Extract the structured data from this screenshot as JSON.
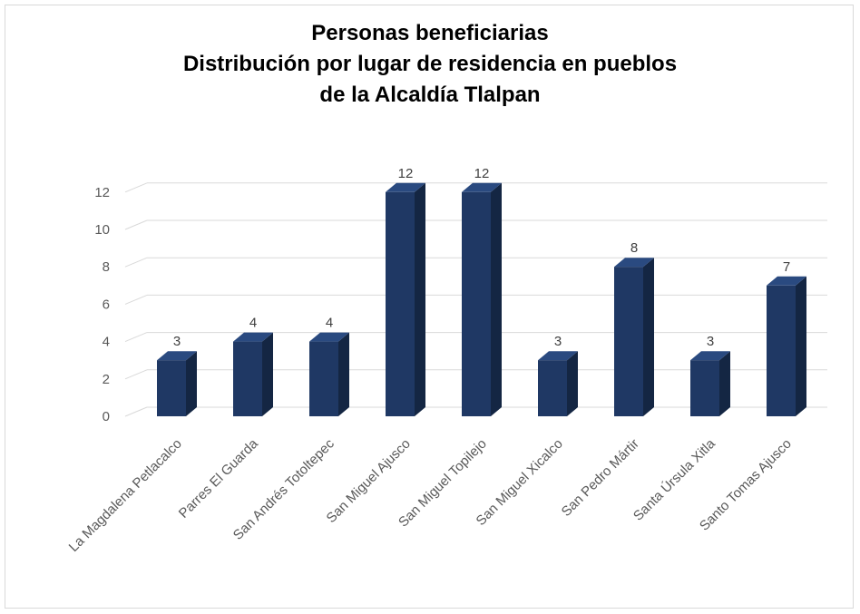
{
  "title_lines": [
    "Personas beneficiarias",
    "Distribución por lugar de residencia en pueblos",
    "de la Alcaldía Tlalpan"
  ],
  "colors": {
    "bar_front": "#1f3864",
    "bar_side": "#142643",
    "bar_top": "#2a4a80",
    "grid": "#d9d9d9"
  },
  "chart_data": {
    "type": "bar",
    "title": "Personas beneficiarias Distribución por lugar de residencia en pueblos de la Alcaldía Tlalpan",
    "categories": [
      "La Magdalena Petlacalco",
      "Parres El Guarda",
      "San Andrés Totoltepec",
      "San Miguel Ajusco",
      "San Miguel Topilejo",
      "San Miguel Xicalco",
      "San Pedro Mártir",
      "Santa Úrsula Xitla",
      "Santo Tomas Ajusco"
    ],
    "values": [
      3,
      4,
      4,
      12,
      12,
      3,
      8,
      3,
      7
    ],
    "yticks": [
      "0",
      "2",
      "4",
      "6",
      "8",
      "10",
      "12"
    ],
    "ylim": [
      0,
      12
    ],
    "xlabel": "",
    "ylabel": "",
    "grid": true,
    "style": "3d"
  }
}
